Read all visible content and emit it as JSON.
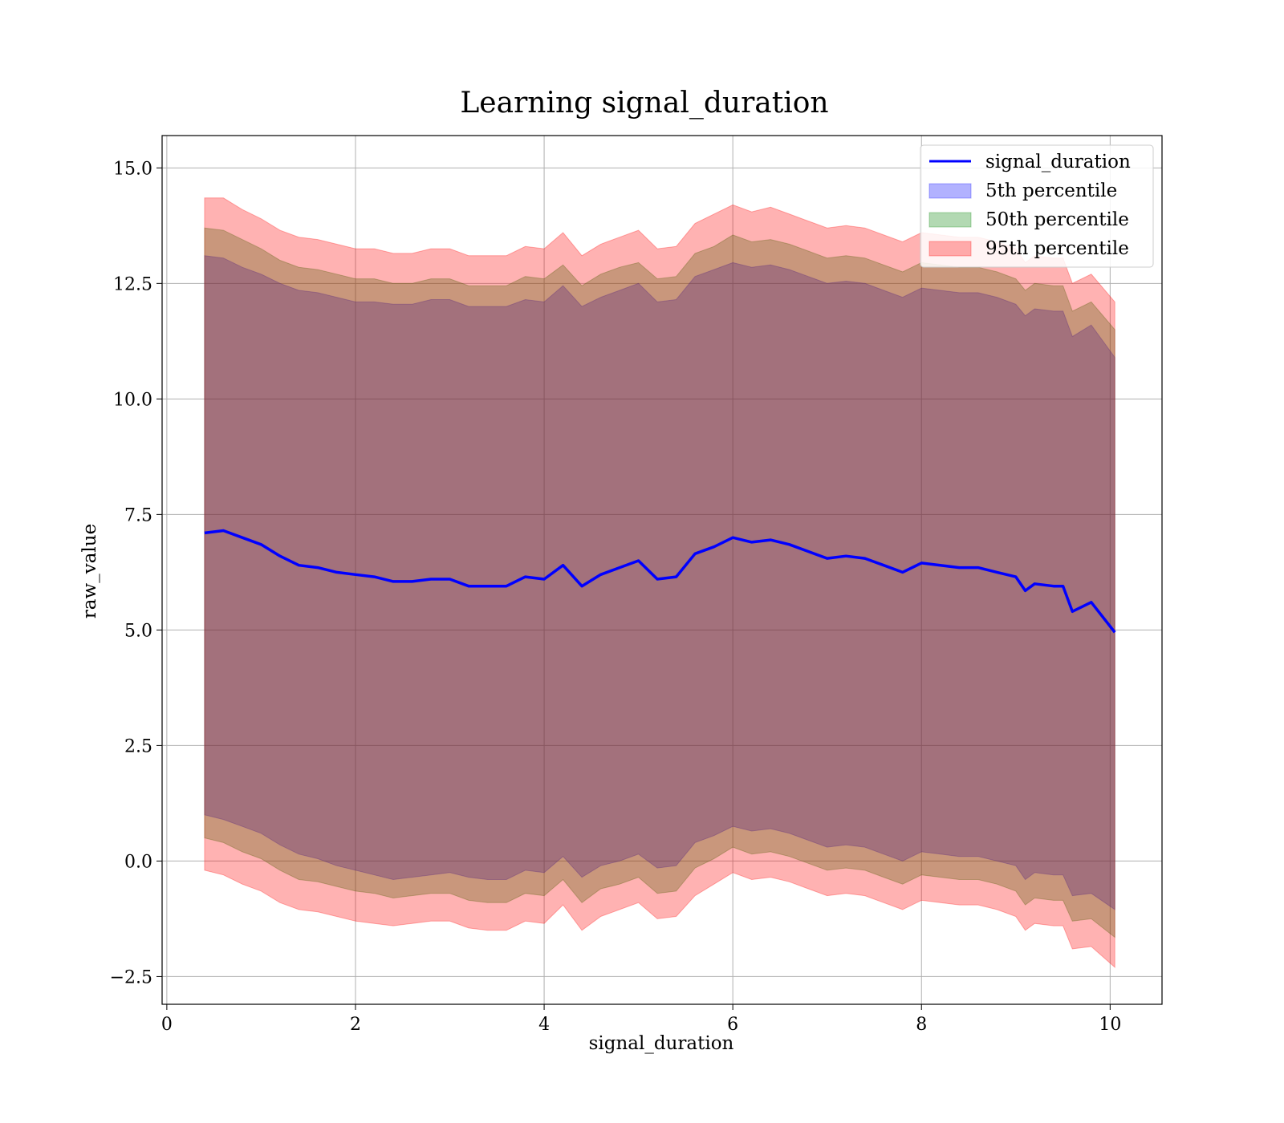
{
  "chart_data": {
    "type": "line",
    "title": "Learning signal_duration",
    "xlabel": "signal_duration",
    "ylabel": "raw_value",
    "xlim": [
      -0.05,
      10.55
    ],
    "ylim": [
      -3.1,
      15.7
    ],
    "xticks": [
      0,
      2,
      4,
      6,
      8,
      10
    ],
    "xtick_labels": [
      "0",
      "2",
      "4",
      "6",
      "8",
      "10"
    ],
    "yticks": [
      -2.5,
      0.0,
      2.5,
      5.0,
      7.5,
      10.0,
      12.5,
      15.0
    ],
    "ytick_labels": [
      "−2.5",
      "0.0",
      "2.5",
      "5.0",
      "7.5",
      "10.0",
      "12.5",
      "15.0"
    ],
    "grid": true,
    "legend_position": "top-right",
    "x": [
      0.4,
      0.6,
      0.8,
      1.0,
      1.2,
      1.4,
      1.6,
      1.8,
      2.0,
      2.2,
      2.4,
      2.6,
      2.8,
      3.0,
      3.2,
      3.4,
      3.6,
      3.8,
      4.0,
      4.2,
      4.4,
      4.6,
      4.8,
      5.0,
      5.2,
      5.4,
      5.6,
      5.8,
      6.0,
      6.2,
      6.4,
      6.6,
      6.8,
      7.0,
      7.2,
      7.4,
      7.6,
      7.8,
      8.0,
      8.2,
      8.4,
      8.6,
      8.8,
      9.0,
      9.1,
      9.2,
      9.4,
      9.5,
      9.6,
      9.8,
      10.05
    ],
    "series": [
      {
        "name": "signal_duration",
        "color": "#0000ff",
        "values": [
          7.1,
          7.15,
          7.0,
          6.85,
          6.6,
          6.4,
          6.35,
          6.25,
          6.2,
          6.15,
          6.05,
          6.05,
          6.1,
          6.1,
          5.95,
          5.95,
          5.95,
          6.15,
          6.1,
          6.4,
          5.95,
          6.2,
          6.35,
          6.5,
          6.1,
          6.15,
          6.65,
          6.8,
          7.0,
          6.9,
          6.95,
          6.85,
          6.7,
          6.55,
          6.6,
          6.55,
          6.4,
          6.25,
          6.45,
          6.4,
          6.35,
          6.35,
          6.25,
          6.15,
          5.85,
          6.0,
          5.95,
          5.95,
          5.4,
          5.6,
          4.95
        ]
      }
    ],
    "bands": [
      {
        "name": "5th percentile",
        "color": "#0000ff",
        "alpha": 0.3,
        "lower": [
          1.0,
          0.9,
          0.75,
          0.6,
          0.35,
          0.15,
          0.05,
          -0.1,
          -0.2,
          -0.3,
          -0.4,
          -0.35,
          -0.3,
          -0.25,
          -0.35,
          -0.4,
          -0.4,
          -0.2,
          -0.25,
          0.1,
          -0.35,
          -0.1,
          0.0,
          0.15,
          -0.15,
          -0.1,
          0.4,
          0.55,
          0.75,
          0.65,
          0.7,
          0.6,
          0.45,
          0.3,
          0.35,
          0.3,
          0.15,
          0.0,
          0.2,
          0.15,
          0.1,
          0.1,
          0.0,
          -0.1,
          -0.4,
          -0.25,
          -0.3,
          -0.3,
          -0.75,
          -0.7,
          -1.05
        ],
        "upper": [
          13.1,
          13.05,
          12.85,
          12.7,
          12.5,
          12.35,
          12.3,
          12.2,
          12.1,
          12.1,
          12.05,
          12.05,
          12.15,
          12.15,
          12.0,
          12.0,
          12.0,
          12.15,
          12.1,
          12.45,
          12.0,
          12.2,
          12.35,
          12.5,
          12.1,
          12.15,
          12.65,
          12.8,
          12.95,
          12.85,
          12.9,
          12.8,
          12.65,
          12.5,
          12.55,
          12.5,
          12.35,
          12.2,
          12.4,
          12.35,
          12.3,
          12.3,
          12.2,
          12.05,
          11.8,
          11.95,
          11.9,
          11.9,
          11.35,
          11.6,
          10.9
        ]
      },
      {
        "name": "50th percentile",
        "color": "#008000",
        "alpha": 0.3,
        "lower": [
          0.5,
          0.4,
          0.2,
          0.05,
          -0.2,
          -0.4,
          -0.45,
          -0.55,
          -0.65,
          -0.7,
          -0.8,
          -0.75,
          -0.7,
          -0.7,
          -0.85,
          -0.9,
          -0.9,
          -0.7,
          -0.75,
          -0.4,
          -0.9,
          -0.6,
          -0.5,
          -0.35,
          -0.7,
          -0.65,
          -0.15,
          0.05,
          0.3,
          0.15,
          0.2,
          0.1,
          -0.05,
          -0.2,
          -0.15,
          -0.2,
          -0.35,
          -0.5,
          -0.3,
          -0.35,
          -0.4,
          -0.4,
          -0.5,
          -0.65,
          -0.95,
          -0.8,
          -0.85,
          -0.85,
          -1.3,
          -1.25,
          -1.65
        ],
        "upper": [
          13.7,
          13.65,
          13.45,
          13.25,
          13.0,
          12.85,
          12.8,
          12.7,
          12.6,
          12.6,
          12.5,
          12.5,
          12.6,
          12.6,
          12.45,
          12.45,
          12.45,
          12.65,
          12.6,
          12.9,
          12.45,
          12.7,
          12.85,
          12.95,
          12.6,
          12.65,
          13.15,
          13.3,
          13.55,
          13.4,
          13.45,
          13.35,
          13.2,
          13.05,
          13.1,
          13.05,
          12.9,
          12.75,
          12.95,
          12.9,
          12.85,
          12.85,
          12.75,
          12.6,
          12.35,
          12.5,
          12.45,
          12.45,
          11.9,
          12.1,
          11.5
        ]
      },
      {
        "name": "95th percentile",
        "color": "#ff0000",
        "alpha": 0.3,
        "lower": [
          -0.2,
          -0.3,
          -0.5,
          -0.65,
          -0.9,
          -1.05,
          -1.1,
          -1.2,
          -1.3,
          -1.35,
          -1.4,
          -1.35,
          -1.3,
          -1.3,
          -1.45,
          -1.5,
          -1.5,
          -1.3,
          -1.35,
          -0.95,
          -1.5,
          -1.2,
          -1.05,
          -0.9,
          -1.25,
          -1.2,
          -0.75,
          -0.5,
          -0.25,
          -0.4,
          -0.35,
          -0.45,
          -0.6,
          -0.75,
          -0.7,
          -0.75,
          -0.9,
          -1.05,
          -0.85,
          -0.9,
          -0.95,
          -0.95,
          -1.05,
          -1.2,
          -1.5,
          -1.35,
          -1.4,
          -1.4,
          -1.9,
          -1.85,
          -2.3
        ],
        "upper": [
          14.35,
          14.35,
          14.1,
          13.9,
          13.65,
          13.5,
          13.45,
          13.35,
          13.25,
          13.25,
          13.15,
          13.15,
          13.25,
          13.25,
          13.1,
          13.1,
          13.1,
          13.3,
          13.25,
          13.6,
          13.1,
          13.35,
          13.5,
          13.65,
          13.25,
          13.3,
          13.8,
          14.0,
          14.2,
          14.05,
          14.15,
          14.0,
          13.85,
          13.7,
          13.75,
          13.7,
          13.55,
          13.4,
          13.6,
          13.55,
          13.5,
          13.5,
          13.4,
          13.25,
          12.95,
          13.1,
          13.05,
          13.05,
          12.5,
          12.7,
          12.1
        ]
      }
    ],
    "legend": [
      "signal_duration",
      "5th percentile",
      "50th percentile",
      "95th percentile"
    ]
  }
}
